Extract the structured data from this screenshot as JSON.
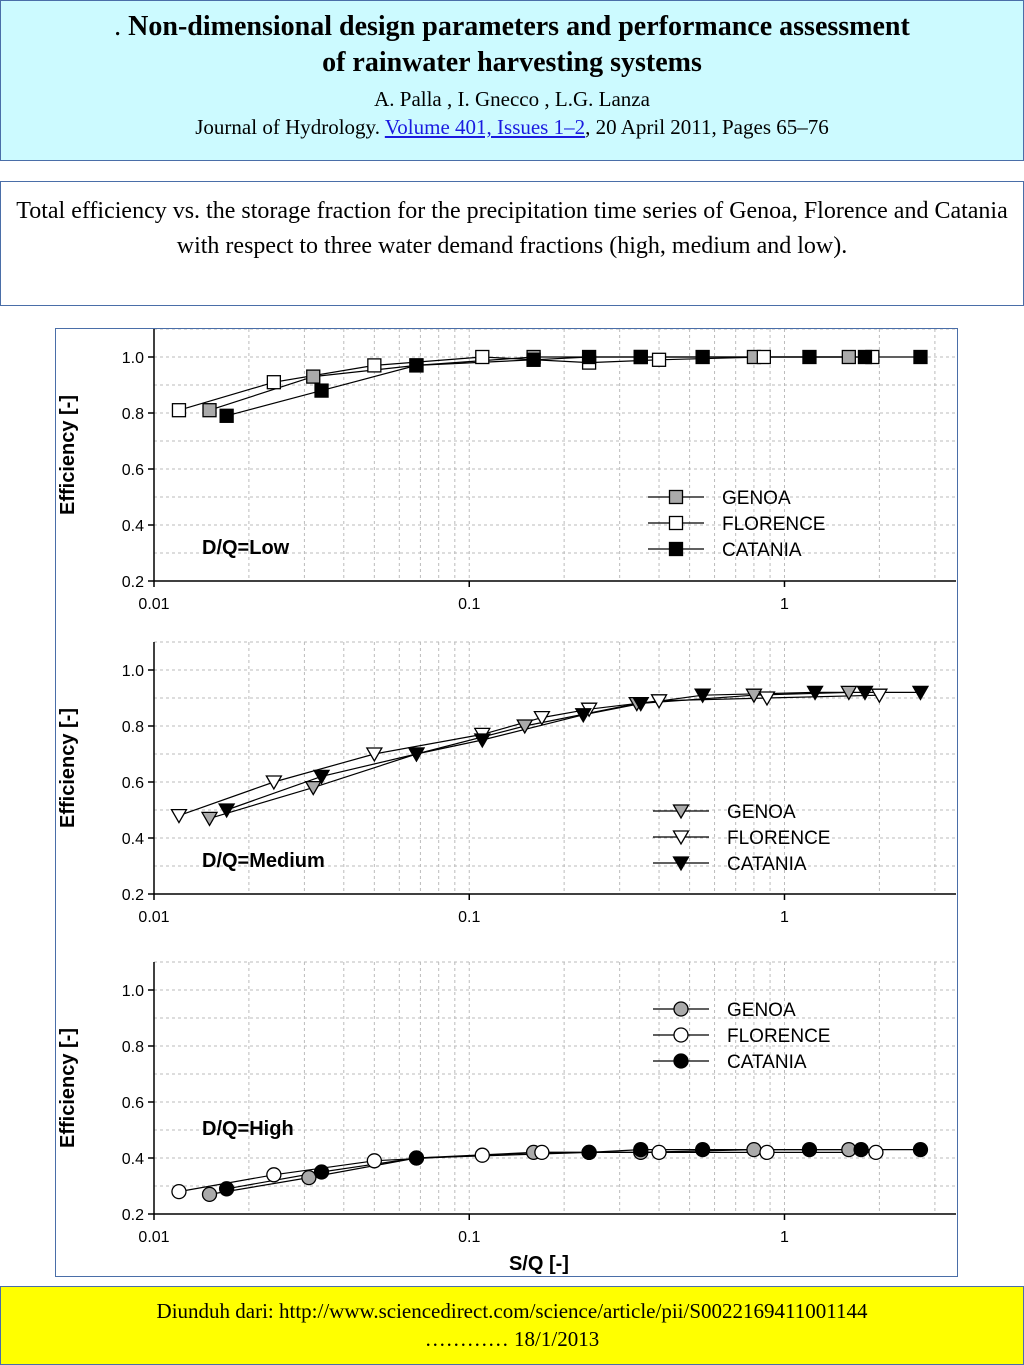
{
  "header": {
    "title_prefix": ". ",
    "title_line1": "Non-dimensional design parameters and performance assessment",
    "title_line2": "of rainwater harvesting systems",
    "authors": "A. Palla  ,  I. Gnecco  , L.G. Lanza",
    "journal_name": "Journal of Hydrology. ",
    "journal_link": "Volume 401, Issues 1–2",
    "journal_rest": ", 20 April 2011, Pages 65–76"
  },
  "caption": {
    "text": "Total efficiency vs. the storage fraction for the precipitation time series of Genoa, Florence and Catania with respect to three water demand fractions (high, medium and low)."
  },
  "footer": {
    "line1": "Diunduh dari:   http://www.sciencedirect.com/science/article/pii/S0022169411001144",
    "line2": "………… 18/1/2013"
  },
  "colors": {
    "genoa_fill": "#aaaaaa",
    "florence_fill": "#ffffff",
    "catania_fill": "#000000",
    "grid": "#bbbbbb"
  },
  "chart_data": [
    {
      "type": "line",
      "label": "D/Q=Low",
      "ylabel": "Efficiency [-]",
      "xlabel": "",
      "xscale": "log",
      "xlim": [
        0.01,
        3.5
      ],
      "ylim": [
        0.2,
        1.1
      ],
      "yticks": [
        "0.2",
        "0.4",
        "0.6",
        "0.8",
        "1.0"
      ],
      "xticks": [
        "0.01",
        "0.1",
        "1"
      ],
      "grid": true,
      "marker": "square",
      "legend_position": "lower-right",
      "series": [
        {
          "name": "GENOA",
          "fill": "genoa",
          "x": [
            0.015,
            0.032,
            0.068,
            0.16,
            0.35,
            0.8,
            1.6
          ],
          "y": [
            0.81,
            0.93,
            0.97,
            1.0,
            1.0,
            1.0,
            1.0
          ]
        },
        {
          "name": "FLORENCE",
          "fill": "florence",
          "x": [
            0.012,
            0.024,
            0.05,
            0.11,
            0.24,
            0.4,
            0.86,
            1.9
          ],
          "y": [
            0.81,
            0.91,
            0.97,
            1.0,
            0.98,
            0.99,
            1.0,
            1.0
          ]
        },
        {
          "name": "CATANIA",
          "fill": "catania",
          "x": [
            0.017,
            0.034,
            0.068,
            0.16,
            0.24,
            0.35,
            0.55,
            1.2,
            1.8,
            2.7
          ],
          "y": [
            0.79,
            0.88,
            0.97,
            0.99,
            1.0,
            1.0,
            1.0,
            1.0,
            1.0,
            1.0
          ]
        }
      ]
    },
    {
      "type": "line",
      "label": "D/Q=Medium",
      "ylabel": "Efficiency [-]",
      "xlabel": "",
      "xscale": "log",
      "xlim": [
        0.01,
        3.5
      ],
      "ylim": [
        0.2,
        1.1
      ],
      "yticks": [
        "0.2",
        "0.4",
        "0.6",
        "0.8",
        "1.0"
      ],
      "xticks": [
        "0.01",
        "0.1",
        "1"
      ],
      "grid": true,
      "marker": "triangle-down",
      "legend_position": "lower-right",
      "series": [
        {
          "name": "GENOA",
          "fill": "genoa",
          "x": [
            0.015,
            0.032,
            0.068,
            0.15,
            0.34,
            0.8,
            1.6
          ],
          "y": [
            0.47,
            0.58,
            0.7,
            0.8,
            0.88,
            0.91,
            0.92
          ]
        },
        {
          "name": "FLORENCE",
          "fill": "florence",
          "x": [
            0.012,
            0.024,
            0.05,
            0.11,
            0.17,
            0.24,
            0.4,
            0.88,
            2.0
          ],
          "y": [
            0.48,
            0.6,
            0.7,
            0.77,
            0.83,
            0.86,
            0.89,
            0.9,
            0.91
          ]
        },
        {
          "name": "CATANIA",
          "fill": "catania",
          "x": [
            0.017,
            0.034,
            0.068,
            0.11,
            0.23,
            0.35,
            0.55,
            1.25,
            1.8,
            2.7
          ],
          "y": [
            0.5,
            0.62,
            0.7,
            0.75,
            0.84,
            0.88,
            0.91,
            0.92,
            0.92,
            0.92
          ]
        }
      ]
    },
    {
      "type": "line",
      "label": "D/Q=High",
      "ylabel": "Efficiency [-]",
      "xlabel": "S/Q [-]",
      "xscale": "log",
      "xlim": [
        0.01,
        3.5
      ],
      "ylim": [
        0.2,
        1.1
      ],
      "yticks": [
        "0.2",
        "0.4",
        "0.6",
        "0.8",
        "1.0"
      ],
      "xticks": [
        "0.01",
        "0.1",
        "1"
      ],
      "grid": true,
      "marker": "circle",
      "legend_position": "upper-right",
      "series": [
        {
          "name": "GENOA",
          "fill": "genoa",
          "x": [
            0.015,
            0.031,
            0.068,
            0.16,
            0.35,
            0.8,
            1.6
          ],
          "y": [
            0.27,
            0.33,
            0.4,
            0.42,
            0.42,
            0.43,
            0.43
          ]
        },
        {
          "name": "FLORENCE",
          "fill": "florence",
          "x": [
            0.012,
            0.024,
            0.05,
            0.11,
            0.17,
            0.24,
            0.4,
            0.88,
            1.95
          ],
          "y": [
            0.28,
            0.34,
            0.39,
            0.41,
            0.42,
            0.42,
            0.42,
            0.42,
            0.42
          ]
        },
        {
          "name": "CATANIA",
          "fill": "catania",
          "x": [
            0.017,
            0.034,
            0.068,
            0.24,
            0.35,
            0.55,
            1.2,
            1.75,
            2.7
          ],
          "y": [
            0.29,
            0.35,
            0.4,
            0.42,
            0.43,
            0.43,
            0.43,
            0.43,
            0.43
          ]
        }
      ]
    }
  ]
}
